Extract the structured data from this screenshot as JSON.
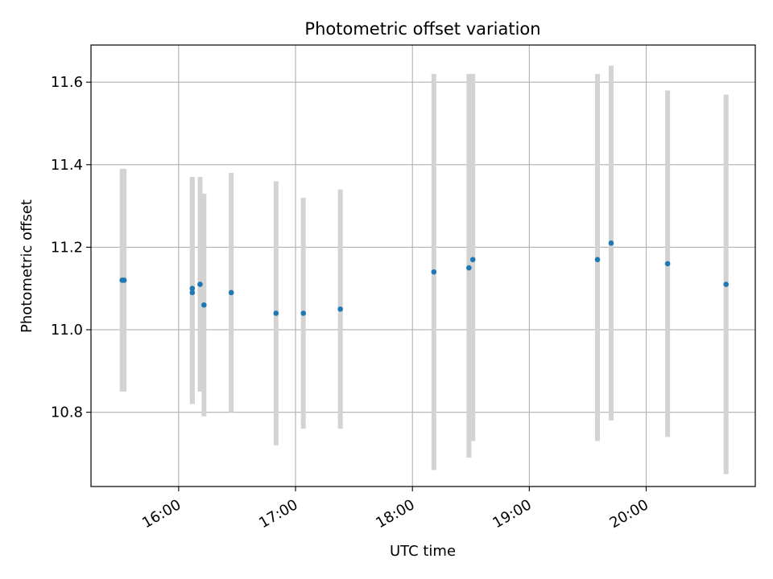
{
  "chart_data": {
    "type": "scatter",
    "title": "Photometric offset variation",
    "xlabel": "UTC time",
    "ylabel": "Photometric offset",
    "x_tick_labels": [
      "16:00",
      "17:00",
      "18:00",
      "19:00",
      "20:00"
    ],
    "x_ticks": [
      "16:00",
      "17:00",
      "18:00",
      "19:00",
      "20:00"
    ],
    "y_ticks": [
      10.8,
      11.0,
      11.2,
      11.4,
      11.6
    ],
    "y_tick_labels": [
      "10.8",
      "11.0",
      "11.2",
      "11.4",
      "11.6"
    ],
    "xlim": [
      "15:15",
      "20:56"
    ],
    "ylim": [
      10.62,
      11.69
    ],
    "grid": true,
    "marker_color": "#1f77b4",
    "errorbar_color": "#d3d3d3",
    "points": [
      {
        "x": "15:31",
        "y": 11.12,
        "ylow": 10.85,
        "yhigh": 11.39
      },
      {
        "x": "15:32",
        "y": 11.12,
        "ylow": 10.85,
        "yhigh": 11.39
      },
      {
        "x": "16:07",
        "y": 11.09,
        "ylow": 10.82,
        "yhigh": 11.37
      },
      {
        "x": "16:07",
        "y": 11.1,
        "ylow": 10.82,
        "yhigh": 11.37
      },
      {
        "x": "16:11",
        "y": 11.11,
        "ylow": 10.85,
        "yhigh": 11.37
      },
      {
        "x": "16:13",
        "y": 11.06,
        "ylow": 10.79,
        "yhigh": 11.33
      },
      {
        "x": "16:27",
        "y": 11.09,
        "ylow": 10.8,
        "yhigh": 11.38
      },
      {
        "x": "16:50",
        "y": 11.04,
        "ylow": 10.72,
        "yhigh": 11.36
      },
      {
        "x": "17:04",
        "y": 11.04,
        "ylow": 10.76,
        "yhigh": 11.32
      },
      {
        "x": "17:23",
        "y": 11.05,
        "ylow": 10.76,
        "yhigh": 11.34
      },
      {
        "x": "18:11",
        "y": 11.14,
        "ylow": 10.66,
        "yhigh": 11.62
      },
      {
        "x": "18:29",
        "y": 11.15,
        "ylow": 10.69,
        "yhigh": 11.62
      },
      {
        "x": "18:31",
        "y": 11.17,
        "ylow": 10.73,
        "yhigh": 11.62
      },
      {
        "x": "19:35",
        "y": 11.17,
        "ylow": 10.73,
        "yhigh": 11.62
      },
      {
        "x": "19:42",
        "y": 11.21,
        "ylow": 10.78,
        "yhigh": 11.64
      },
      {
        "x": "20:11",
        "y": 11.16,
        "ylow": 10.74,
        "yhigh": 11.58
      },
      {
        "x": "20:41",
        "y": 11.11,
        "ylow": 10.65,
        "yhigh": 11.57
      }
    ]
  }
}
